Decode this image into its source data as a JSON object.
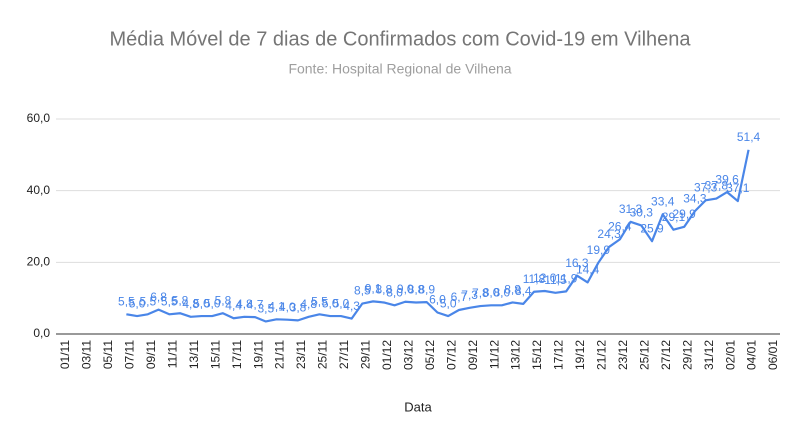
{
  "chart_data": {
    "type": "line",
    "title": "Média Móvel de 7 dias de Confirmados com Covid-19 em Vilhena",
    "subtitle": "Fonte: Hospital Regional de Vilhena",
    "x_label": "Data",
    "categories": [
      "01/11",
      null,
      "03/11",
      null,
      "05/11",
      null,
      "07/11",
      null,
      "09/11",
      null,
      "11/11",
      null,
      "13/11",
      null,
      "15/11",
      null,
      "17/11",
      null,
      "19/11",
      null,
      "21/11",
      null,
      "23/11",
      null,
      "25/11",
      null,
      "27/11",
      null,
      "29/11",
      null,
      "01/12",
      null,
      "03/12",
      null,
      "05/12",
      null,
      "07/12",
      null,
      "09/12",
      null,
      "11/12",
      null,
      "13/12",
      null,
      "15/12",
      null,
      "17/12",
      null,
      "19/12",
      null,
      "21/12",
      null,
      "23/12",
      null,
      "25/12",
      null,
      "27/12",
      null,
      "29/12",
      null,
      "31/12",
      null,
      "02/01",
      null,
      "04/01",
      null,
      "06/01"
    ],
    "values": [
      null,
      null,
      null,
      null,
      null,
      null,
      5.5,
      5.0,
      5.5,
      6.8,
      5.5,
      5.8,
      4.8,
      5.0,
      5.0,
      5.8,
      4.4,
      4.8,
      4.7,
      3.5,
      4.1,
      4.0,
      3.8,
      4.8,
      5.5,
      5.0,
      5.0,
      4.3,
      8.5,
      9.1,
      8.8,
      8.0,
      9.0,
      8.8,
      8.9,
      6.0,
      5.0,
      6.7,
      7.3,
      7.8,
      8.0,
      8.0,
      8.8,
      8.4,
      11.8,
      12.0,
      11.5,
      11.9,
      16.3,
      14.4,
      19.9,
      24.3,
      26.4,
      31.3,
      30.3,
      25.9,
      33.4,
      29.1,
      29.9,
      34.3,
      37.3,
      37.8,
      39.6,
      37.1,
      51.4,
      null,
      null
    ],
    "value_labels": [
      null,
      null,
      null,
      null,
      null,
      null,
      "5,5",
      "5,0",
      "5,5",
      "6,8",
      "5,5",
      "5,8",
      "4,8",
      "5,0",
      "5,0",
      "5,8",
      "4,4",
      "4,8",
      "4,7",
      "3,5",
      "4,1",
      "4,0",
      "3,8",
      "4,8",
      "5,5",
      "5,0",
      "5,0",
      "4,3",
      "8,5",
      "9,1",
      "8,8",
      "8,0",
      "9,0",
      "8,8",
      "8,9",
      "6,0",
      "5,0",
      "6,7",
      "7,3",
      "7,8",
      "8,0",
      "8,0",
      "8,8",
      "8,4",
      "11,8",
      "12,0",
      "11,5",
      "11,9",
      "16,3",
      "14,4",
      "19,9",
      "24,3",
      "26,4",
      "31,3",
      "30,3",
      "25,9",
      "33,4",
      "29,1",
      "29,9",
      "34,3",
      "37,3",
      "37,8",
      "39,6",
      "37,1",
      "51,4",
      null,
      null
    ],
    "color": "#4a86e8",
    "ylim": [
      0,
      60
    ],
    "yticks": [
      {
        "value": 0,
        "label": "0,0"
      },
      {
        "value": 20,
        "label": "20,0"
      },
      {
        "value": 40,
        "label": "40,0"
      },
      {
        "value": 60,
        "label": "60,0"
      }
    ],
    "grid": true
  }
}
